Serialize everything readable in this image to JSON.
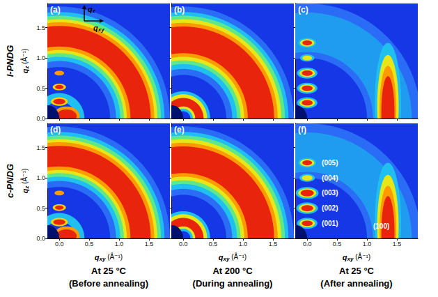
{
  "figure": {
    "row_labels": [
      "l-PNDG",
      "c-PNDG"
    ],
    "column_titles": [
      [
        "At 25 °C",
        "(Before annealing)"
      ],
      [
        "At 200 °C",
        "(During annealing)"
      ],
      [
        "At 25 °C",
        "(After annealing)"
      ]
    ],
    "compass": {
      "vertical": {
        "symbol": "q",
        "subscript": "z"
      },
      "horizontal": {
        "symbol": "q",
        "subscript": "xy"
      }
    }
  },
  "chart_data": [
    {
      "type": "pattern",
      "title": "(a)",
      "tick_labels": "y",
      "y_label": {
        "symbol": "q",
        "subscript": "z",
        "unit": "(Å⁻¹)"
      },
      "xlim": [
        -0.2,
        1.85
      ],
      "xticks": [
        {
          "value": 0,
          "label": "0.0"
        },
        0.5,
        {
          "value": 1,
          "label": "1.0"
        },
        1.5
      ],
      "ylim": [
        0,
        1.9
      ],
      "yticks": [
        {
          "value": 0,
          "label": "0.0"
        },
        0.5,
        {
          "value": 1,
          "label": "1.0"
        },
        1.5
      ],
      "rings": [
        {
          "inner": 0.85,
          "outer": 1.85,
          "color": "#2a6cf5"
        },
        {
          "inner": 0.95,
          "outer": 1.76,
          "color": "#1fc0f0"
        },
        {
          "inner": 1.02,
          "outer": 1.7,
          "color": "#5ee88a"
        },
        {
          "inner": 1.08,
          "outer": 1.64,
          "color": "#e6e619"
        },
        {
          "inner": 1.13,
          "outer": 1.59,
          "color": "#ff9a00"
        },
        {
          "inner": 1.19,
          "outer": 1.53,
          "color": "#e8240c"
        },
        {
          "inner": 0.28,
          "outer": 0.42,
          "color": "#1fc0f0"
        }
      ],
      "spots": [
        {
          "qxy": 0.12,
          "qz": 0.04,
          "rxy": 0.22,
          "rz": 0.16,
          "color": "#ff9a00"
        },
        {
          "qxy": 0.12,
          "qz": 0.04,
          "rxy": 0.17,
          "rz": 0.11,
          "color": "#e8240c"
        },
        {
          "qxy": 0,
          "qz": 0.28,
          "rxy": 0.14,
          "rz": 0.07,
          "color": "#ffd000"
        },
        {
          "qxy": 0,
          "qz": 0.28,
          "rxy": 0.1,
          "rz": 0.045,
          "color": "#e8240c"
        },
        {
          "qxy": 0,
          "qz": 0.52,
          "rxy": 0.11,
          "rz": 0.055,
          "color": "#ffd000"
        },
        {
          "qxy": 0,
          "qz": 0.52,
          "rxy": 0.07,
          "rz": 0.035,
          "color": "#e8240c"
        },
        {
          "qxy": 0,
          "qz": 0.75,
          "rxy": 0.08,
          "rz": 0.04,
          "color": "#ff9a00"
        },
        {
          "qxy": -0.2,
          "qz": 0,
          "rxy": 0.2,
          "rz": 0.22,
          "color": "#00106e"
        }
      ]
    },
    {
      "type": "pattern",
      "title": "(b)",
      "tick_labels": false,
      "xlim": [
        -0.2,
        1.85
      ],
      "xticks": [
        {
          "value": 0,
          "label": "0.0"
        },
        0.5,
        {
          "value": 1,
          "label": "1.0"
        },
        1.5
      ],
      "ylim": [
        0,
        1.9
      ],
      "yticks": [
        {
          "value": 0,
          "label": "0.0"
        },
        0.5,
        {
          "value": 1,
          "label": "1.0"
        },
        1.5
      ],
      "rings": [
        {
          "inner": 0.72,
          "outer": 1.85,
          "color": "#2a6cf5"
        },
        {
          "inner": 0.82,
          "outer": 1.76,
          "color": "#1fc0f0"
        },
        {
          "inner": 0.9,
          "outer": 1.7,
          "color": "#5ee88a"
        },
        {
          "inner": 0.96,
          "outer": 1.64,
          "color": "#e6e619"
        },
        {
          "inner": 1.02,
          "outer": 1.58,
          "color": "#ff9a00"
        },
        {
          "inner": 1.08,
          "outer": 1.52,
          "color": "#e8240c"
        },
        {
          "inner": 0.12,
          "outer": 0.45,
          "color": "#1fc0f0"
        },
        {
          "inner": 0.16,
          "outer": 0.4,
          "color": "#e6e619"
        },
        {
          "inner": 0.2,
          "outer": 0.34,
          "color": "#e8240c"
        }
      ],
      "spots": [
        {
          "qxy": 0,
          "qz": 0.28,
          "rxy": 0.08,
          "rz": 0.05,
          "color": "#e8240c"
        },
        {
          "qxy": -0.2,
          "qz": 0,
          "rxy": 0.2,
          "rz": 0.22,
          "color": "#00106e"
        }
      ]
    },
    {
      "type": "pattern",
      "title": "(c)",
      "tick_labels": false,
      "xlim": [
        -0.2,
        1.85
      ],
      "xticks": [
        {
          "value": 0,
          "label": "0.0"
        },
        0.5,
        {
          "value": 1,
          "label": "1.0"
        },
        1.5
      ],
      "ylim": [
        0,
        1.9
      ],
      "yticks": [
        {
          "value": 0,
          "label": "0.0"
        },
        0.5,
        {
          "value": 1,
          "label": "1.0"
        },
        1.5
      ],
      "rings": [
        {
          "inner": 1.0,
          "outer": 1.9,
          "color": "#2a6cf5"
        },
        {
          "inner": 1.1,
          "outer": 1.75,
          "color": "#1f9cf0"
        }
      ],
      "spots": [
        {
          "qxy": 1.35,
          "qz": 0.25,
          "rxy": 0.22,
          "rz": 1.0,
          "color": "#1fc0f0"
        },
        {
          "qxy": 1.35,
          "qz": 0.2,
          "rxy": 0.18,
          "rz": 0.85,
          "color": "#e6e619"
        },
        {
          "qxy": 1.35,
          "qz": 0.15,
          "rxy": 0.14,
          "rz": 0.72,
          "color": "#ff9a00"
        },
        {
          "qxy": 1.35,
          "qz": 0.1,
          "rxy": 0.11,
          "rz": 0.6,
          "color": "#e8240c"
        },
        {
          "qxy": 0,
          "qz": 0.26,
          "rxy": 0.17,
          "rz": 0.09,
          "color": "#1fc0f0"
        },
        {
          "qxy": 0,
          "qz": 0.26,
          "rxy": 0.13,
          "rz": 0.065,
          "color": "#e6e619"
        },
        {
          "qxy": 0,
          "qz": 0.26,
          "rxy": 0.09,
          "rz": 0.045,
          "color": "#e8240c"
        },
        {
          "qxy": 0,
          "qz": 0.5,
          "rxy": 0.17,
          "rz": 0.09,
          "color": "#1fc0f0"
        },
        {
          "qxy": 0,
          "qz": 0.5,
          "rxy": 0.13,
          "rz": 0.065,
          "color": "#e6e619"
        },
        {
          "qxy": 0,
          "qz": 0.5,
          "rxy": 0.09,
          "rz": 0.045,
          "color": "#e8240c"
        },
        {
          "qxy": 0,
          "qz": 0.75,
          "rxy": 0.17,
          "rz": 0.09,
          "color": "#1fc0f0"
        },
        {
          "qxy": 0,
          "qz": 0.75,
          "rxy": 0.13,
          "rz": 0.065,
          "color": "#e6e619"
        },
        {
          "qxy": 0,
          "qz": 0.75,
          "rxy": 0.09,
          "rz": 0.045,
          "color": "#e8240c"
        },
        {
          "qxy": 0,
          "qz": 1.0,
          "rxy": 0.12,
          "rz": 0.06,
          "color": "#1fc0f0"
        },
        {
          "qxy": 0,
          "qz": 1.0,
          "rxy": 0.08,
          "rz": 0.04,
          "color": "#e6e619"
        },
        {
          "qxy": 0,
          "qz": 1.25,
          "rxy": 0.15,
          "rz": 0.08,
          "color": "#1fc0f0"
        },
        {
          "qxy": 0,
          "qz": 1.25,
          "rxy": 0.12,
          "rz": 0.06,
          "color": "#e6e619"
        },
        {
          "qxy": 0,
          "qz": 1.25,
          "rxy": 0.08,
          "rz": 0.04,
          "color": "#e8240c"
        },
        {
          "qxy": -0.2,
          "qz": 0,
          "rxy": 0.2,
          "rz": 0.22,
          "color": "#00106e"
        }
      ]
    },
    {
      "type": "pattern",
      "title": "(d)",
      "tick_labels": true,
      "x_label": {
        "symbol": "q",
        "subscript": "xy",
        "unit": "(Å⁻¹)"
      },
      "y_label": {
        "symbol": "q",
        "subscript": "z",
        "unit": "(Å⁻¹)"
      },
      "xlim": [
        -0.2,
        1.85
      ],
      "xticks": [
        {
          "value": 0,
          "label": "0.0"
        },
        0.5,
        {
          "value": 1,
          "label": "1.0"
        },
        1.5
      ],
      "ylim": [
        0,
        1.9
      ],
      "yticks": [
        {
          "value": 0,
          "label": "0.0"
        },
        0.5,
        {
          "value": 1,
          "label": "1.0"
        },
        1.5
      ],
      "rings": [
        {
          "inner": 0.85,
          "outer": 1.85,
          "color": "#2a6cf5"
        },
        {
          "inner": 0.95,
          "outer": 1.76,
          "color": "#1fc0f0"
        },
        {
          "inner": 1.02,
          "outer": 1.7,
          "color": "#5ee88a"
        },
        {
          "inner": 1.08,
          "outer": 1.64,
          "color": "#e6e619"
        },
        {
          "inner": 1.13,
          "outer": 1.59,
          "color": "#ff9a00"
        },
        {
          "inner": 1.19,
          "outer": 1.53,
          "color": "#e8240c"
        },
        {
          "inner": 0.28,
          "outer": 0.42,
          "color": "#1fc0f0"
        }
      ],
      "spots": [
        {
          "qxy": 0.12,
          "qz": 0.04,
          "rxy": 0.22,
          "rz": 0.16,
          "color": "#ff9a00"
        },
        {
          "qxy": 0.12,
          "qz": 0.04,
          "rxy": 0.17,
          "rz": 0.11,
          "color": "#e8240c"
        },
        {
          "qxy": 0,
          "qz": 0.27,
          "rxy": 0.14,
          "rz": 0.07,
          "color": "#ffd000"
        },
        {
          "qxy": 0,
          "qz": 0.27,
          "rxy": 0.1,
          "rz": 0.045,
          "color": "#e8240c"
        },
        {
          "qxy": 0,
          "qz": 0.51,
          "rxy": 0.11,
          "rz": 0.055,
          "color": "#ffd000"
        },
        {
          "qxy": 0,
          "qz": 0.51,
          "rxy": 0.07,
          "rz": 0.035,
          "color": "#e8240c"
        },
        {
          "qxy": 0,
          "qz": 0.75,
          "rxy": 0.08,
          "rz": 0.04,
          "color": "#ff9a00"
        },
        {
          "qxy": -0.2,
          "qz": 0,
          "rxy": 0.2,
          "rz": 0.22,
          "color": "#00106e"
        }
      ]
    },
    {
      "type": "pattern",
      "title": "(e)",
      "tick_labels": "x",
      "x_label": {
        "symbol": "q",
        "subscript": "xy",
        "unit": "(Å⁻¹)"
      },
      "xlim": [
        -0.2,
        1.85
      ],
      "xticks": [
        {
          "value": 0,
          "label": "0.0"
        },
        0.5,
        {
          "value": 1,
          "label": "1.0"
        },
        1.5
      ],
      "ylim": [
        0,
        1.9
      ],
      "yticks": [
        {
          "value": 0,
          "label": "0.0"
        },
        0.5,
        {
          "value": 1,
          "label": "1.0"
        },
        1.5
      ],
      "rings": [
        {
          "inner": 0.72,
          "outer": 1.85,
          "color": "#2a6cf5"
        },
        {
          "inner": 0.82,
          "outer": 1.76,
          "color": "#1fc0f0"
        },
        {
          "inner": 0.9,
          "outer": 1.7,
          "color": "#5ee88a"
        },
        {
          "inner": 0.96,
          "outer": 1.64,
          "color": "#e6e619"
        },
        {
          "inner": 1.02,
          "outer": 1.58,
          "color": "#ff9a00"
        },
        {
          "inner": 1.08,
          "outer": 1.52,
          "color": "#e8240c"
        },
        {
          "inner": 0.12,
          "outer": 0.45,
          "color": "#1fc0f0"
        },
        {
          "inner": 0.16,
          "outer": 0.4,
          "color": "#e6e619"
        },
        {
          "inner": 0.2,
          "outer": 0.34,
          "color": "#e8240c"
        }
      ],
      "spots": [
        {
          "qxy": 0,
          "qz": 0.28,
          "rxy": 0.08,
          "rz": 0.05,
          "color": "#e8240c"
        },
        {
          "qxy": -0.2,
          "qz": 0,
          "rxy": 0.2,
          "rz": 0.22,
          "color": "#00106e"
        }
      ]
    },
    {
      "type": "pattern",
      "title": "(f)",
      "tick_labels": "x",
      "x_label": {
        "symbol": "q",
        "subscript": "xy",
        "unit": "(Å⁻¹)"
      },
      "xlim": [
        -0.2,
        1.85
      ],
      "xticks": [
        {
          "value": 0,
          "label": "0.0"
        },
        0.5,
        {
          "value": 1,
          "label": "1.0"
        },
        1.5
      ],
      "ylim": [
        0,
        1.9
      ],
      "yticks": [
        {
          "value": 0,
          "label": "0.0"
        },
        0.5,
        {
          "value": 1,
          "label": "1.0"
        },
        1.5
      ],
      "rings": [
        {
          "inner": 1.0,
          "outer": 1.9,
          "color": "#2a6cf5"
        },
        {
          "inner": 1.1,
          "outer": 1.75,
          "color": "#1f9cf0"
        }
      ],
      "spots": [
        {
          "qxy": 1.35,
          "qz": 0.25,
          "rxy": 0.22,
          "rz": 1.0,
          "color": "#1fc0f0"
        },
        {
          "qxy": 1.35,
          "qz": 0.2,
          "rxy": 0.18,
          "rz": 0.85,
          "color": "#e6e619"
        },
        {
          "qxy": 1.35,
          "qz": 0.15,
          "rxy": 0.14,
          "rz": 0.72,
          "color": "#ff9a00"
        },
        {
          "qxy": 1.35,
          "qz": 0.1,
          "rxy": 0.11,
          "rz": 0.6,
          "color": "#e8240c"
        },
        {
          "qxy": 0,
          "qz": 0.25,
          "rxy": 0.17,
          "rz": 0.09,
          "color": "#1fc0f0"
        },
        {
          "qxy": 0,
          "qz": 0.25,
          "rxy": 0.13,
          "rz": 0.065,
          "color": "#e6e619"
        },
        {
          "qxy": 0,
          "qz": 0.25,
          "rxy": 0.09,
          "rz": 0.045,
          "color": "#e8240c"
        },
        {
          "qxy": 0,
          "qz": 0.5,
          "rxy": 0.18,
          "rz": 0.095,
          "color": "#1fc0f0"
        },
        {
          "qxy": 0,
          "qz": 0.5,
          "rxy": 0.14,
          "rz": 0.07,
          "color": "#e6e619"
        },
        {
          "qxy": 0,
          "qz": 0.5,
          "rxy": 0.1,
          "rz": 0.05,
          "color": "#e8240c"
        },
        {
          "qxy": 0,
          "qz": 0.75,
          "rxy": 0.19,
          "rz": 0.1,
          "color": "#1fc0f0"
        },
        {
          "qxy": 0,
          "qz": 0.75,
          "rxy": 0.15,
          "rz": 0.075,
          "color": "#e6e619"
        },
        {
          "qxy": 0,
          "qz": 0.75,
          "rxy": 0.11,
          "rz": 0.055,
          "color": "#e8240c"
        },
        {
          "qxy": 0,
          "qz": 1.0,
          "rxy": 0.13,
          "rz": 0.065,
          "color": "#1fc0f0"
        },
        {
          "qxy": 0,
          "qz": 1.0,
          "rxy": 0.09,
          "rz": 0.045,
          "color": "#e6e619"
        },
        {
          "qxy": 0,
          "qz": 1.25,
          "rxy": 0.15,
          "rz": 0.08,
          "color": "#1fc0f0"
        },
        {
          "qxy": 0,
          "qz": 1.25,
          "rxy": 0.12,
          "rz": 0.06,
          "color": "#e6e619"
        },
        {
          "qxy": 0,
          "qz": 1.25,
          "rxy": 0.08,
          "rz": 0.04,
          "color": "#e8240c"
        },
        {
          "qxy": -0.2,
          "qz": 0,
          "rxy": 0.2,
          "rz": 0.22,
          "color": "#00106e"
        }
      ],
      "annotations": [
        {
          "text": "(005)",
          "qxy": 0.38,
          "qz": 1.25
        },
        {
          "text": "(004)",
          "qxy": 0.38,
          "qz": 1.0
        },
        {
          "text": "(003)",
          "qxy": 0.38,
          "qz": 0.75
        },
        {
          "text": "(002)",
          "qxy": 0.38,
          "qz": 0.5
        },
        {
          "text": "(001)",
          "qxy": 0.38,
          "qz": 0.25
        },
        {
          "text": "(100)",
          "qxy": 1.24,
          "qz": 0.2
        }
      ]
    }
  ]
}
